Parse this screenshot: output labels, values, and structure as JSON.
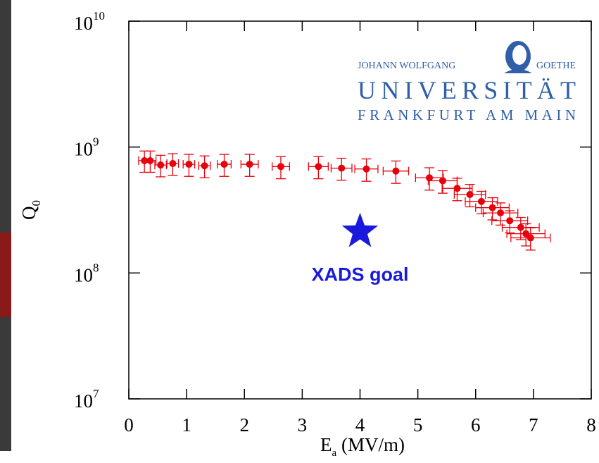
{
  "chart_data": {
    "type": "scatter",
    "xlabel": {
      "text": "E",
      "sub": "a",
      "rest": " (MV/m)"
    },
    "ylabel": {
      "text": "Q",
      "sub": "0"
    },
    "log_y": true,
    "color": "#e8000b",
    "x": [
      0.27,
      0.37,
      0.55,
      0.76,
      1.04,
      1.31,
      1.65,
      2.09,
      2.63,
      3.28,
      3.68,
      4.11,
      4.62,
      5.2,
      5.43,
      5.68,
      5.9,
      6.1,
      6.29,
      6.43,
      6.59,
      6.78,
      6.87,
      6.95
    ],
    "values": [
      780000000,
      780000000,
      720000000,
      740000000,
      730000000,
      710000000,
      730000000,
      730000000,
      700000000,
      700000000,
      680000000,
      670000000,
      645000000,
      570000000,
      540000000,
      470000000,
      420000000,
      370000000,
      330000000,
      300000000,
      260000000,
      230000000,
      205000000,
      190000000
    ],
    "yerr": [
      150000000,
      150000000,
      140000000,
      145000000,
      145000000,
      140000000,
      145000000,
      145000000,
      140000000,
      140000000,
      135000000,
      135000000,
      130000000,
      115000000,
      110000000,
      95000000,
      85000000,
      75000000,
      66000000,
      60000000,
      52000000,
      46000000,
      41000000,
      38000000
    ],
    "xerr": [
      0.1,
      0.1,
      0.1,
      0.1,
      0.1,
      0.1,
      0.12,
      0.15,
      0.15,
      0.17,
      0.18,
      0.2,
      0.22,
      0.24,
      0.25,
      0.26,
      0.27,
      0.28,
      0.29,
      0.3,
      0.31,
      0.32,
      0.33,
      0.34
    ],
    "xlim": [
      0,
      8
    ],
    "xticks": [
      0,
      1,
      2,
      3,
      4,
      5,
      6,
      7,
      8
    ],
    "ylim": [
      10000000,
      10000000000
    ],
    "yticks": [
      {
        "value": 10000000,
        "label": "10",
        "exponent": "7"
      },
      {
        "value": 100000000,
        "label": "10",
        "exponent": "8"
      },
      {
        "value": 1000000000,
        "label": "10",
        "exponent": "9"
      },
      {
        "value": 10000000000,
        "label": "10",
        "exponent": "10"
      }
    ],
    "annotations": [
      {
        "text": "XADS goal",
        "x": 4,
        "y": 213000000,
        "color": "#1a1adc"
      }
    ]
  },
  "logo": {
    "line1_left": "JOHANN WOLFGANG",
    "line1_right": "GOETHE",
    "line2": "UNIVERSITÄT",
    "line3": "FRANKFURT AM MAIN",
    "color": "#2f5fa8"
  }
}
